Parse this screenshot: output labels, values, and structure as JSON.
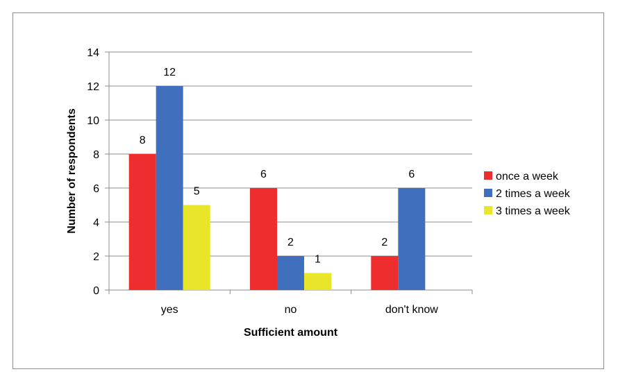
{
  "chart_data": {
    "type": "bar",
    "categories": [
      "yes",
      "no",
      "don't know"
    ],
    "series": [
      {
        "name": "once a week",
        "values": [
          8,
          6,
          2
        ],
        "color": "#ee2e2e"
      },
      {
        "name": "2 times a week",
        "values": [
          12,
          2,
          6
        ],
        "color": "#3f6fbd"
      },
      {
        "name": "3 times a week",
        "values": [
          5,
          1,
          null
        ],
        "color": "#e9e62a"
      }
    ],
    "xlabel": "Sufficient amount",
    "ylabel": "Number of respondents",
    "ylim": [
      0,
      14
    ],
    "yticks": [
      "0",
      "2",
      "4",
      "6",
      "8",
      "10",
      "12",
      "14"
    ],
    "grid": true,
    "legend_position": "right"
  }
}
